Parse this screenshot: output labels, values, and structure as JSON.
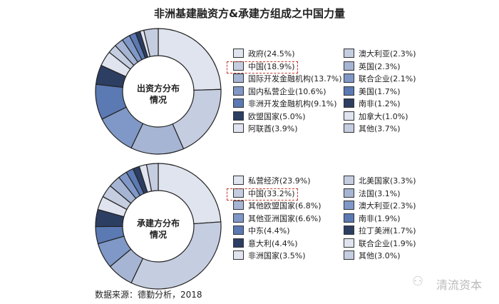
{
  "title": "非洲基建融资方&承建方组成之中国力量",
  "source": "数据来源：德勤分析，2018",
  "watermark": "清流资本",
  "palette": [
    "#dfe4ef",
    "#c5cde0",
    "#a6b5d3",
    "#7f98c7",
    "#5b79b3",
    "#3f5a93",
    "#2d3e63"
  ],
  "highlight_color": "#c0392b",
  "chart_data": [
    {
      "type": "pie",
      "variant": "donut",
      "center_label": [
        "出资方分布",
        "情况"
      ],
      "highlight": "中国",
      "slices": [
        {
          "label": "政府(24.5%)",
          "name": "政府",
          "value": 24.5,
          "color": "#dfe4ef"
        },
        {
          "label": "中国(18.9%)",
          "name": "中国",
          "value": 18.9,
          "color": "#c5cde0"
        },
        {
          "label": "国际开发金融机构(13.7%)",
          "name": "国际开发金融机构",
          "value": 13.7,
          "color": "#a6b5d3"
        },
        {
          "label": "国内私营企业(10.6%)",
          "name": "国内私营企业",
          "value": 10.6,
          "color": "#7f98c7"
        },
        {
          "label": "非洲开发金融机构(9.1%)",
          "name": "非洲开发金融机构",
          "value": 9.1,
          "color": "#5b79b3"
        },
        {
          "label": "欧盟国家(5.0%)",
          "name": "欧盟国家",
          "value": 5.0,
          "color": "#2d3e63"
        },
        {
          "label": "阿联酋(3.9%)",
          "name": "阿联酋",
          "value": 3.9,
          "color": "#dfe4ef"
        },
        {
          "label": "澳大利亚(2.3%)",
          "name": "澳大利亚",
          "value": 2.3,
          "color": "#c5cde0"
        },
        {
          "label": "英国(2.3%)",
          "name": "英国",
          "value": 2.3,
          "color": "#a6b5d3"
        },
        {
          "label": "联合企业(2.1%)",
          "name": "联合企业",
          "value": 2.1,
          "color": "#7f98c7"
        },
        {
          "label": "美国(1.7%)",
          "name": "美国",
          "value": 1.7,
          "color": "#5b79b3"
        },
        {
          "label": "南非(1.2%)",
          "name": "南非",
          "value": 1.2,
          "color": "#2d3e63"
        },
        {
          "label": "加拿大(1.0%)",
          "name": "加拿大",
          "value": 1.0,
          "color": "#dfe4ef"
        },
        {
          "label": "其他(3.7%)",
          "name": "其他",
          "value": 3.7,
          "color": "#c5cde0"
        }
      ]
    },
    {
      "type": "pie",
      "variant": "donut",
      "center_label": [
        "承建方分布",
        "情况"
      ],
      "highlight": "中国",
      "slices": [
        {
          "label": "私营经济(23.9%)",
          "name": "私营经济",
          "value": 23.9,
          "color": "#dfe4ef"
        },
        {
          "label": "中国(33.2%)",
          "name": "中国",
          "value": 33.2,
          "color": "#c5cde0"
        },
        {
          "label": "其他欧盟国家(6.8%)",
          "name": "其他欧盟国家",
          "value": 6.8,
          "color": "#a6b5d3"
        },
        {
          "label": "其他亚洲国家(6.6%)",
          "name": "其他亚洲国家",
          "value": 6.6,
          "color": "#7f98c7"
        },
        {
          "label": "中东(4.4%)",
          "name": "中东",
          "value": 4.4,
          "color": "#5b79b3"
        },
        {
          "label": "意大利(4.4%)",
          "name": "意大利",
          "value": 4.4,
          "color": "#2d3e63"
        },
        {
          "label": "非洲国家(3.5%)",
          "name": "非洲国家",
          "value": 3.5,
          "color": "#dfe4ef"
        },
        {
          "label": "北美国家(3.3%)",
          "name": "北美国家",
          "value": 3.3,
          "color": "#c5cde0"
        },
        {
          "label": "法国(3.1%)",
          "name": "法国",
          "value": 3.1,
          "color": "#a6b5d3"
        },
        {
          "label": "澳大利亚(2.3%)",
          "name": "澳大利亚",
          "value": 2.3,
          "color": "#7f98c7"
        },
        {
          "label": "南非(1.9%)",
          "name": "南非",
          "value": 1.9,
          "color": "#5b79b3"
        },
        {
          "label": "拉丁美洲(1.7%)",
          "name": "拉丁美洲",
          "value": 1.7,
          "color": "#2d3e63"
        },
        {
          "label": "联合企业(1.9%)",
          "name": "联合企业",
          "value": 1.9,
          "color": "#dfe4ef"
        },
        {
          "label": "其他(3.0%)",
          "name": "其他",
          "value": 3.0,
          "color": "#c5cde0"
        }
      ]
    }
  ]
}
